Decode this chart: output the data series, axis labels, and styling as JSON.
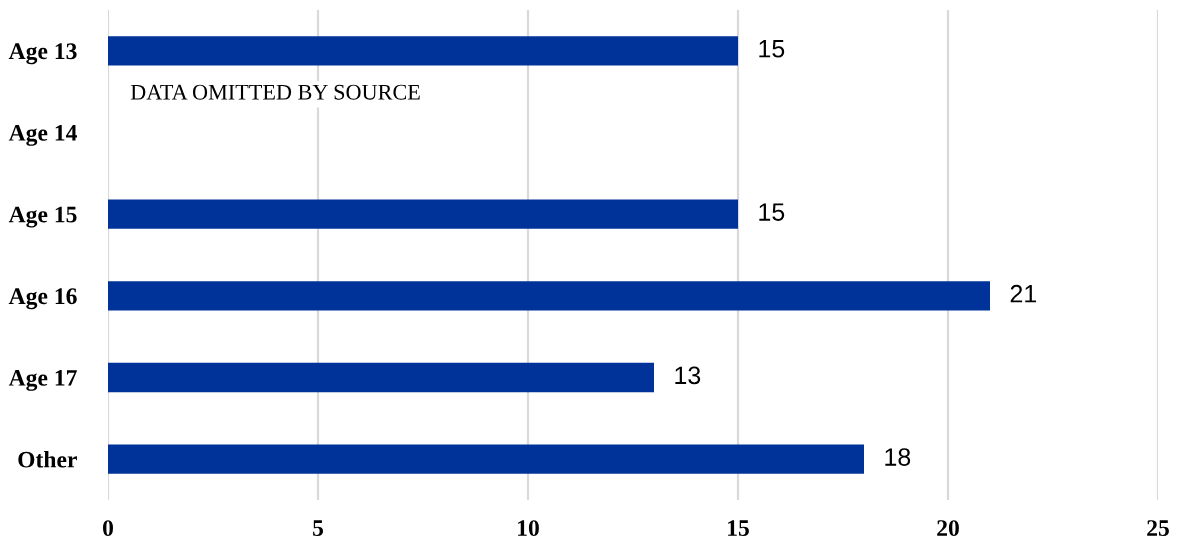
{
  "chart_data": {
    "type": "bar",
    "orientation": "horizontal",
    "categories": [
      "Age 13",
      "Age 14",
      "Age 15",
      "Age 16",
      "Age 17",
      "Other"
    ],
    "values": [
      15,
      null,
      15,
      21,
      13,
      18
    ],
    "color": "#003399",
    "xlim": [
      0,
      25
    ],
    "xticks": [
      0,
      5,
      10,
      15,
      20,
      25
    ],
    "grid": "x",
    "data_labels": true,
    "annotations": [
      "DATA OMITTED BY SOURCE"
    ]
  }
}
